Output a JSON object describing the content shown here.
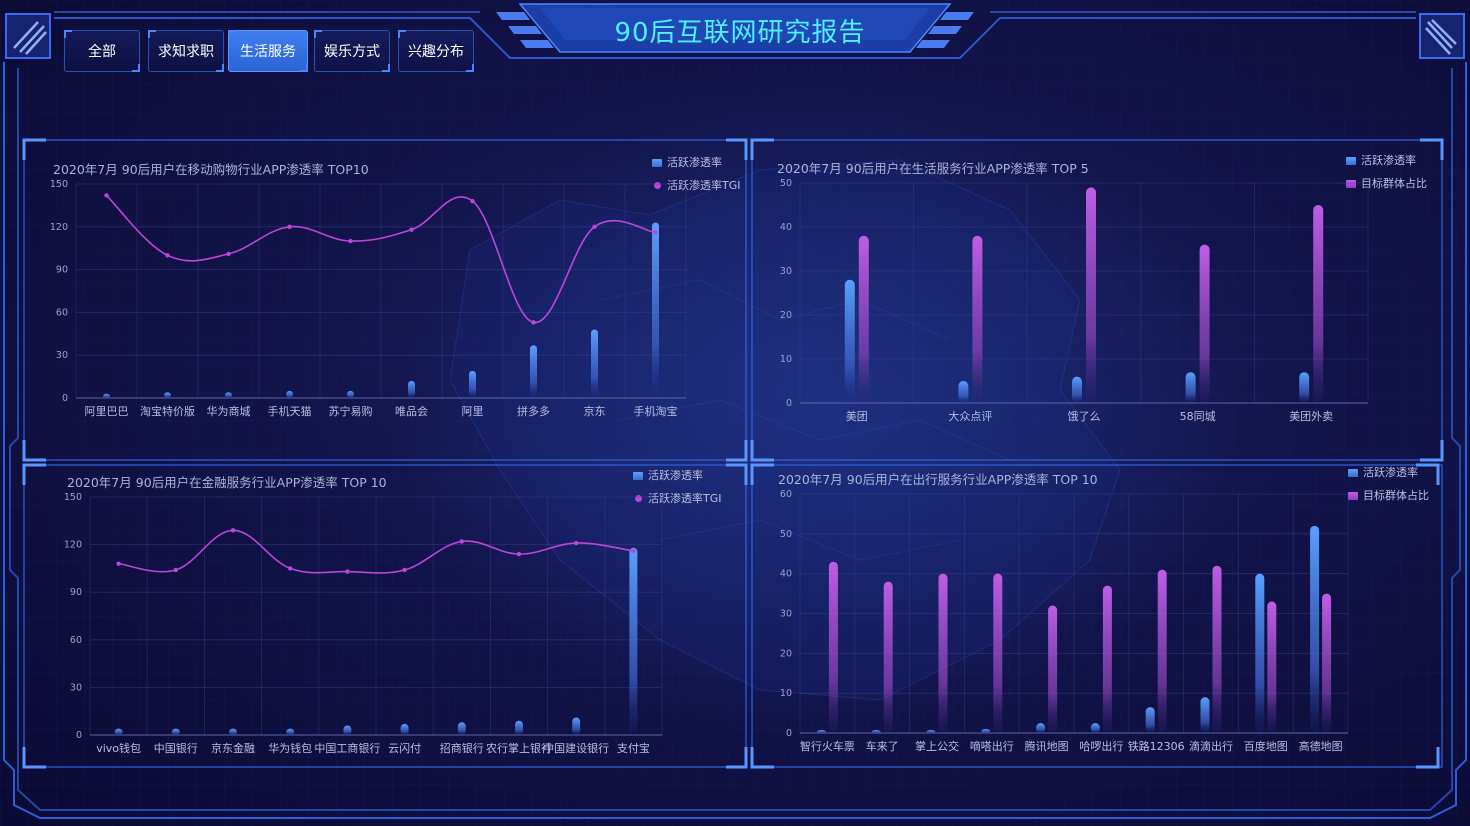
{
  "header": {
    "title": "90后互联网研究报告"
  },
  "tabs": [
    {
      "label": "全部",
      "active": false
    },
    {
      "label": "求知求职",
      "active": false
    },
    {
      "label": "生活服务",
      "active": true
    },
    {
      "label": "娱乐方式",
      "active": false
    },
    {
      "label": "兴趣分布",
      "active": false
    }
  ],
  "colors": {
    "accent": "#4ff1ff",
    "bar_blue": "#5aa0ff",
    "bar_purple": "#c05ee6",
    "line": "#bb47d8",
    "frame": "#2f5fd8"
  },
  "chart_data": [
    {
      "type": "bar",
      "title": "2020年7月 90后用户在移动购物行业APP渗透率 TOP10",
      "categories": [
        "阿里巴巴",
        "淘宝特价版",
        "华为商城",
        "手机天猫",
        "苏宁易购",
        "唯品会",
        "阿里",
        "拼多多",
        "京东",
        "手机淘宝"
      ],
      "series": [
        {
          "name": "活跃渗透率",
          "kind": "bar",
          "values": [
            3,
            4,
            4,
            5,
            5,
            12,
            19,
            37,
            48,
            123
          ]
        },
        {
          "name": "活跃渗透率TGI",
          "kind": "line",
          "values": [
            142,
            100,
            101,
            120,
            110,
            118,
            138,
            53,
            120,
            116
          ]
        }
      ],
      "ylim": [
        0,
        150
      ],
      "yticks": [
        0,
        30,
        60,
        90,
        120,
        150
      ],
      "grid": true,
      "legend": "top-right"
    },
    {
      "type": "bar",
      "title": "2020年7月 90后用户在生活服务行业APP渗透率 TOP 5",
      "categories": [
        "美团",
        "大众点评",
        "饿了么",
        "58同城",
        "美团外卖"
      ],
      "series": [
        {
          "name": "活跃渗透率",
          "kind": "bar",
          "values": [
            28,
            5,
            6,
            7,
            7
          ]
        },
        {
          "name": "目标群体占比",
          "kind": "bar",
          "values": [
            38,
            38,
            49,
            36,
            45
          ]
        }
      ],
      "ylim": [
        0,
        50
      ],
      "yticks": [
        0,
        10,
        20,
        30,
        40,
        50
      ],
      "grid": true,
      "legend": "top-right"
    },
    {
      "type": "bar",
      "title": "2020年7月 90后用户在金融服务行业APP渗透率 TOP 10",
      "categories": [
        "vivo钱包",
        "中国银行",
        "京东金融",
        "华为钱包",
        "中国工商银行",
        "云闪付",
        "招商银行",
        "农行掌上银行",
        "中国建设银行",
        "支付宝"
      ],
      "series": [
        {
          "name": "活跃渗透率",
          "kind": "bar",
          "values": [
            4,
            4,
            4,
            4,
            6,
            7,
            8,
            9,
            11,
            118
          ]
        },
        {
          "name": "活跃渗透率TGI",
          "kind": "line",
          "values": [
            108,
            104,
            129,
            105,
            103,
            104,
            122,
            114,
            121,
            116
          ]
        }
      ],
      "ylim": [
        0,
        150
      ],
      "yticks": [
        0,
        30,
        60,
        90,
        120,
        150
      ],
      "grid": true,
      "legend": "top-right"
    },
    {
      "type": "bar",
      "title": "2020年7月 90后用户在出行服务行业APP渗透率 TOP 10",
      "categories": [
        "智行火车票",
        "车来了",
        "掌上公交",
        "嘀嗒出行",
        "腾讯地图",
        "哈啰出行",
        "铁路12306",
        "滴滴出行",
        "百度地图",
        "高德地图"
      ],
      "series": [
        {
          "name": "活跃渗透率",
          "kind": "bar",
          "values": [
            0.5,
            0.5,
            0.5,
            1,
            2.5,
            2.5,
            6.5,
            9,
            40,
            52
          ]
        },
        {
          "name": "目标群体占比",
          "kind": "bar",
          "values": [
            43,
            38,
            40,
            40,
            32,
            37,
            41,
            42,
            33,
            35
          ]
        }
      ],
      "ylim": [
        0,
        60
      ],
      "yticks": [
        0,
        10,
        20,
        30,
        40,
        50,
        60
      ],
      "grid": true,
      "legend": "top-right"
    }
  ]
}
